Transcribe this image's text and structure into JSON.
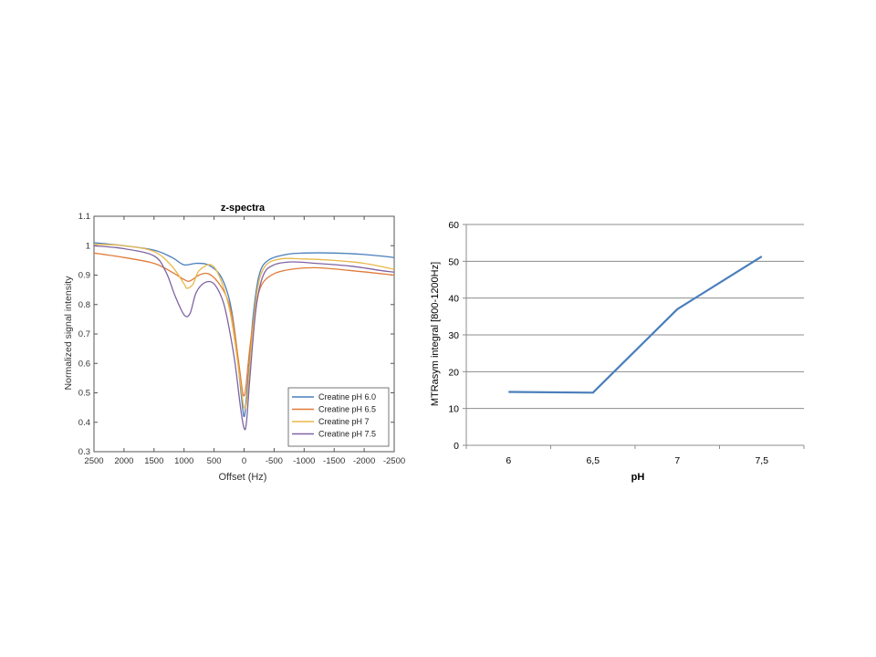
{
  "chart_data": [
    {
      "type": "line",
      "title": "z-spectra",
      "xlabel": "Offset (Hz)",
      "ylabel": "Normalized signal intensity",
      "xlim": [
        2500,
        -2500
      ],
      "ylim": [
        0.3,
        1.1
      ],
      "x_ticks": [
        2500,
        2000,
        1500,
        1000,
        500,
        0,
        -500,
        -1000,
        -1500,
        -2000,
        -2500
      ],
      "y_ticks": [
        0.3,
        0.4,
        0.5,
        0.6,
        0.7,
        0.8,
        0.9,
        1,
        1.1
      ],
      "x_tick_labels": [
        "2500",
        "2000",
        "1500",
        "1000",
        "500",
        "0",
        "-500",
        "-1000",
        "-1500",
        "-2000",
        "-2500"
      ],
      "y_tick_labels": [
        "0.3",
        "0.4",
        "0.5",
        "0.6",
        "0.7",
        "0.8",
        "0.9",
        "1",
        "1.1"
      ],
      "legend_position": "bottom-right",
      "series": [
        {
          "name": "Creatine pH 6.0",
          "color": "#4a7ebb",
          "points": [
            [
              2500,
              1.01
            ],
            [
              2000,
              1.0
            ],
            [
              1500,
              0.985
            ],
            [
              1200,
              0.96
            ],
            [
              1000,
              0.935
            ],
            [
              800,
              0.94
            ],
            [
              600,
              0.935
            ],
            [
              400,
              0.9
            ],
            [
              250,
              0.82
            ],
            [
              150,
              0.7
            ],
            [
              80,
              0.56
            ],
            [
              20,
              0.44
            ],
            [
              0,
              0.42
            ],
            [
              -20,
              0.44
            ],
            [
              -80,
              0.58
            ],
            [
              -150,
              0.76
            ],
            [
              -250,
              0.9
            ],
            [
              -400,
              0.95
            ],
            [
              -700,
              0.97
            ],
            [
              -1000,
              0.975
            ],
            [
              -1500,
              0.975
            ],
            [
              -2000,
              0.97
            ],
            [
              -2500,
              0.96
            ]
          ]
        },
        {
          "name": "Creatine pH 6.5",
          "color": "#e07b39",
          "points": [
            [
              2500,
              0.975
            ],
            [
              2000,
              0.96
            ],
            [
              1500,
              0.94
            ],
            [
              1200,
              0.91
            ],
            [
              1000,
              0.885
            ],
            [
              900,
              0.88
            ],
            [
              750,
              0.9
            ],
            [
              600,
              0.905
            ],
            [
              450,
              0.88
            ],
            [
              300,
              0.83
            ],
            [
              200,
              0.76
            ],
            [
              100,
              0.62
            ],
            [
              30,
              0.51
            ],
            [
              0,
              0.49
            ],
            [
              -30,
              0.52
            ],
            [
              -100,
              0.66
            ],
            [
              -200,
              0.8
            ],
            [
              -300,
              0.87
            ],
            [
              -500,
              0.905
            ],
            [
              -800,
              0.92
            ],
            [
              -1200,
              0.925
            ],
            [
              -1800,
              0.915
            ],
            [
              -2500,
              0.9
            ]
          ]
        },
        {
          "name": "Creatine pH 7",
          "color": "#e8b84a",
          "points": [
            [
              2500,
              1.005
            ],
            [
              2000,
              1.0
            ],
            [
              1500,
              0.98
            ],
            [
              1200,
              0.93
            ],
            [
              1000,
              0.87
            ],
            [
              950,
              0.855
            ],
            [
              850,
              0.87
            ],
            [
              750,
              0.915
            ],
            [
              550,
              0.935
            ],
            [
              400,
              0.89
            ],
            [
              250,
              0.79
            ],
            [
              150,
              0.67
            ],
            [
              60,
              0.53
            ],
            [
              0,
              0.45
            ],
            [
              -50,
              0.48
            ],
            [
              -120,
              0.66
            ],
            [
              -220,
              0.85
            ],
            [
              -350,
              0.93
            ],
            [
              -600,
              0.955
            ],
            [
              -1000,
              0.955
            ],
            [
              -1500,
              0.95
            ],
            [
              -2000,
              0.94
            ],
            [
              -2500,
              0.92
            ]
          ]
        },
        {
          "name": "Creatine pH 7.5",
          "color": "#8064a2",
          "points": [
            [
              2500,
              1.0
            ],
            [
              2000,
              0.99
            ],
            [
              1500,
              0.965
            ],
            [
              1300,
              0.91
            ],
            [
              1150,
              0.83
            ],
            [
              1000,
              0.765
            ],
            [
              900,
              0.77
            ],
            [
              800,
              0.84
            ],
            [
              650,
              0.875
            ],
            [
              500,
              0.87
            ],
            [
              350,
              0.81
            ],
            [
              250,
              0.72
            ],
            [
              150,
              0.6
            ],
            [
              60,
              0.45
            ],
            [
              0,
              0.38
            ],
            [
              -40,
              0.4
            ],
            [
              -100,
              0.56
            ],
            [
              -200,
              0.79
            ],
            [
              -320,
              0.9
            ],
            [
              -500,
              0.935
            ],
            [
              -800,
              0.945
            ],
            [
              -1200,
              0.94
            ],
            [
              -1800,
              0.93
            ],
            [
              -2300,
              0.915
            ],
            [
              -2500,
              0.91
            ]
          ]
        }
      ]
    },
    {
      "type": "line",
      "title": "",
      "xlabel": "pH",
      "ylabel": "MTRasym integral [800-1200Hz]",
      "categories": [
        "6",
        "6,5",
        "7",
        "7,5"
      ],
      "ylim": [
        0,
        60
      ],
      "y_ticks": [
        0,
        10,
        20,
        30,
        40,
        50,
        60
      ],
      "y_tick_labels": [
        "0",
        "10",
        "20",
        "30",
        "40",
        "50",
        "60"
      ],
      "grid": true,
      "series": [
        {
          "color": "#4a7ebb",
          "values": [
            14.5,
            14.3,
            37,
            51.3
          ]
        }
      ]
    }
  ]
}
